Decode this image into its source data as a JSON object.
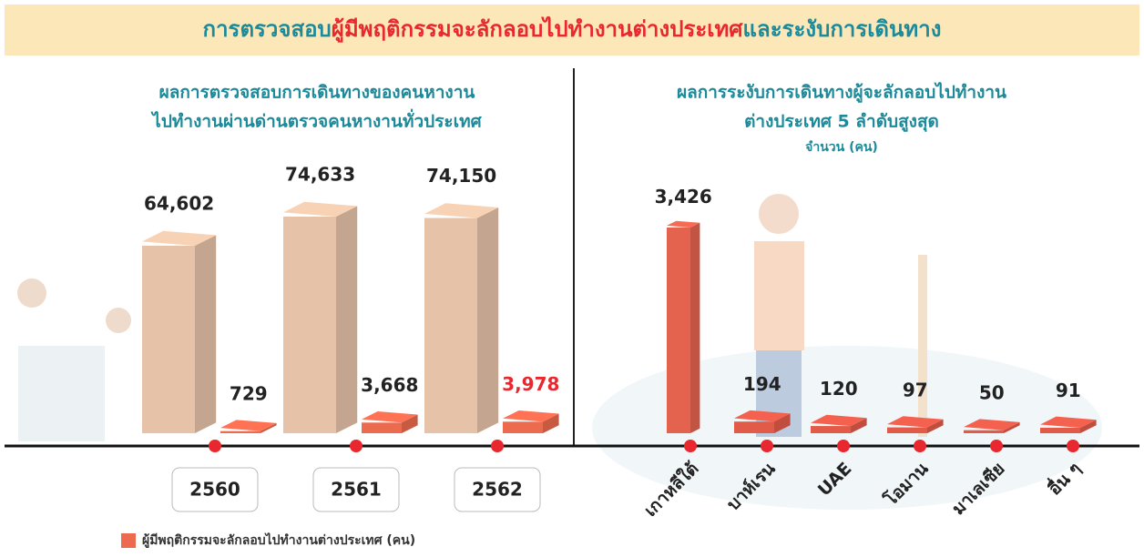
{
  "title": [
    "การตรวจสอบ",
    "ผู้มีพฤติกรรมจะลักลอบไปทำงานต่างประเทศ",
    "และระงับการเดินทาง"
  ],
  "chart_data": [
    {
      "type": "bar",
      "title": [
        "ผลการตรวจสอบการเดินทางของคนหางาน",
        "ไปทำงานผ่านด่านตรวจคนหางานทั่วประเทศ"
      ],
      "categories": [
        "2560",
        "2561",
        "2562"
      ],
      "series": [
        {
          "color": "#e6c2a8",
          "values": [
            64602,
            74633,
            74150
          ],
          "value_labels": [
            "64,602",
            "74,633",
            "74,150"
          ]
        },
        {
          "name": "ผู้มีพฤติกรรมจะลักลอบไปทำงานต่างประเทศ (คน)",
          "color": "#ec6a4e",
          "values": [
            729,
            3668,
            3978
          ],
          "value_labels": [
            "729",
            "3,668",
            "3,978"
          ]
        }
      ]
    },
    {
      "type": "bar",
      "title": [
        "ผลการระงับการเดินทางผู้จะลักลอบไปทำงาน",
        "ต่างประเทศ 5 ลำดับสูงสุด"
      ],
      "subtitle": "จำนวน (คน)",
      "categories": [
        "เกาหลีใต้",
        "บาห์เรน",
        "UAE",
        "โอมาน",
        "มาเลเซีย",
        "อื่น ๆ"
      ],
      "values": [
        3426,
        194,
        120,
        97,
        50,
        91
      ],
      "value_labels": [
        "3,426",
        "194",
        "120",
        "97",
        "50",
        "91"
      ],
      "colors": [
        "#e4634f",
        "#e25a48",
        "#e25a48",
        "#e25a48",
        "#e25a48",
        "#e25a48"
      ]
    }
  ]
}
